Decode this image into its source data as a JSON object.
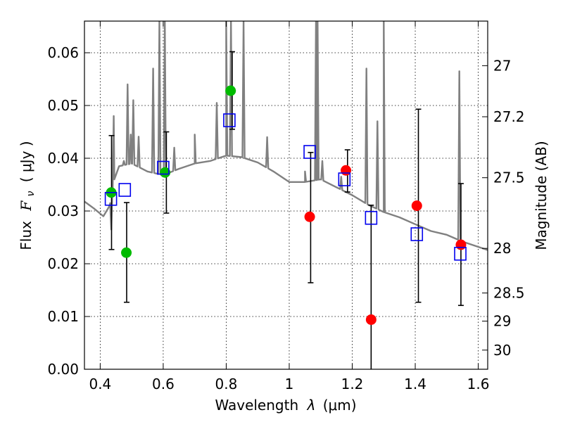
{
  "chart_data": {
    "type": "scatter",
    "xlabel_prefix": "Wavelength",
    "xlabel_lambda": "λ",
    "xlabel_unit": "(μm)",
    "ylabel_prefix": "Flux",
    "ylabel_symbol": "F",
    "ylabel_sub": "ν",
    "ylabel_unit": "( μJy )",
    "ylabel_right": "Magnitude (AB)",
    "xlim": [
      0.35,
      1.63
    ],
    "ylim": [
      0.0,
      0.066
    ],
    "x_ticks": [
      0.4,
      0.6,
      0.8,
      1.0,
      1.2,
      1.4,
      1.6
    ],
    "x_tick_labels": [
      "0.4",
      "0.6",
      "0.8",
      "1",
      "1.2",
      "1.4",
      "1.6"
    ],
    "y_ticks": [
      0.0,
      0.01,
      0.02,
      0.03,
      0.04,
      0.05,
      0.06
    ],
    "y_tick_labels": [
      "0.00",
      "0.01",
      "0.02",
      "0.03",
      "0.04",
      "0.05",
      "0.06"
    ],
    "right_ticks": [
      {
        "mag": 27.0,
        "label": "27"
      },
      {
        "mag": 27.2,
        "label": "27.2"
      },
      {
        "mag": 27.5,
        "label": "27.5"
      },
      {
        "mag": 28.0,
        "label": "28"
      },
      {
        "mag": 28.5,
        "label": "28.5"
      },
      {
        "mag": 29.0,
        "label": "29"
      },
      {
        "mag": 30.0,
        "label": "30"
      }
    ],
    "grid": true,
    "template_spectrum": {
      "name": "model SED",
      "color": "#808080",
      "continuum": [
        [
          0.35,
          0.0318
        ],
        [
          0.38,
          0.0305
        ],
        [
          0.41,
          0.029
        ],
        [
          0.43,
          0.031
        ],
        [
          0.445,
          0.036
        ],
        [
          0.46,
          0.0385
        ],
        [
          0.5,
          0.039
        ],
        [
          0.55,
          0.0375
        ],
        [
          0.6,
          0.0368
        ],
        [
          0.65,
          0.038
        ],
        [
          0.7,
          0.039
        ],
        [
          0.75,
          0.0395
        ],
        [
          0.8,
          0.0405
        ],
        [
          0.85,
          0.0402
        ],
        [
          0.9,
          0.0392
        ],
        [
          0.95,
          0.0375
        ],
        [
          1.0,
          0.0355
        ],
        [
          1.05,
          0.0355
        ],
        [
          1.1,
          0.036
        ],
        [
          1.15,
          0.0345
        ],
        [
          1.2,
          0.033
        ],
        [
          1.25,
          0.0312
        ],
        [
          1.3,
          0.0298
        ],
        [
          1.35,
          0.0288
        ],
        [
          1.4,
          0.0275
        ],
        [
          1.45,
          0.0262
        ],
        [
          1.5,
          0.0255
        ],
        [
          1.55,
          0.0242
        ],
        [
          1.6,
          0.0232
        ],
        [
          1.63,
          0.0226
        ]
      ],
      "emission_lines": [
        [
          0.435,
          0.0265
        ],
        [
          0.443,
          0.048
        ],
        [
          0.475,
          0.0395
        ],
        [
          0.487,
          0.054
        ],
        [
          0.497,
          0.0445
        ],
        [
          0.505,
          0.051
        ],
        [
          0.522,
          0.0441
        ],
        [
          0.568,
          0.057
        ],
        [
          0.588,
          0.066
        ],
        [
          0.605,
          0.066
        ],
        [
          0.635,
          0.042
        ],
        [
          0.7,
          0.0445
        ],
        [
          0.77,
          0.0505
        ],
        [
          0.8,
          0.066
        ],
        [
          0.815,
          0.066
        ],
        [
          0.855,
          0.066
        ],
        [
          0.93,
          0.044
        ],
        [
          1.05,
          0.0375
        ],
        [
          1.085,
          0.066
        ],
        [
          1.09,
          0.066
        ],
        [
          1.105,
          0.0395
        ],
        [
          1.165,
          0.0365
        ],
        [
          1.245,
          0.057
        ],
        [
          1.28,
          0.047
        ],
        [
          1.3,
          0.066
        ],
        [
          1.54,
          0.0565
        ]
      ]
    },
    "series": [
      {
        "name": "green detections",
        "marker": "circle",
        "color": "#00bb00",
        "points": [
          [
            0.435,
            0.0335
          ],
          [
            0.483,
            0.0221
          ],
          [
            0.606,
            0.0373
          ],
          [
            0.814,
            0.0528
          ]
        ]
      },
      {
        "name": "red detections",
        "marker": "circle",
        "color": "#ff0000",
        "points": [
          [
            1.065,
            0.0289
          ],
          [
            1.18,
            0.0377
          ],
          [
            1.26,
            0.0094
          ],
          [
            1.405,
            0.031
          ],
          [
            1.545,
            0.0236
          ]
        ]
      },
      {
        "name": "model photometry",
        "marker": "square",
        "color": "#0000ee",
        "points": [
          [
            0.434,
            0.0323
          ],
          [
            0.478,
            0.034
          ],
          [
            0.6,
            0.0382
          ],
          [
            0.81,
            0.0472
          ],
          [
            1.065,
            0.0412
          ],
          [
            1.175,
            0.036
          ],
          [
            1.26,
            0.0287
          ],
          [
            1.405,
            0.0256
          ],
          [
            1.543,
            0.0219
          ]
        ]
      }
    ],
    "error_bars": [
      {
        "x": 0.436,
        "low": 0.0227,
        "high": 0.0443
      },
      {
        "x": 0.484,
        "low": 0.0127,
        "high": 0.0316
      },
      {
        "x": 0.61,
        "low": 0.0296,
        "high": 0.045
      },
      {
        "x": 0.819,
        "low": 0.0455,
        "high": 0.0602
      },
      {
        "x": 1.068,
        "low": 0.0164,
        "high": 0.0411
      },
      {
        "x": 1.185,
        "low": 0.0336,
        "high": 0.0416
      },
      {
        "x": 1.26,
        "low": 0.0,
        "high": 0.0311
      },
      {
        "x": 1.41,
        "low": 0.0127,
        "high": 0.0493
      },
      {
        "x": 1.545,
        "low": 0.0121,
        "high": 0.0352
      }
    ]
  }
}
